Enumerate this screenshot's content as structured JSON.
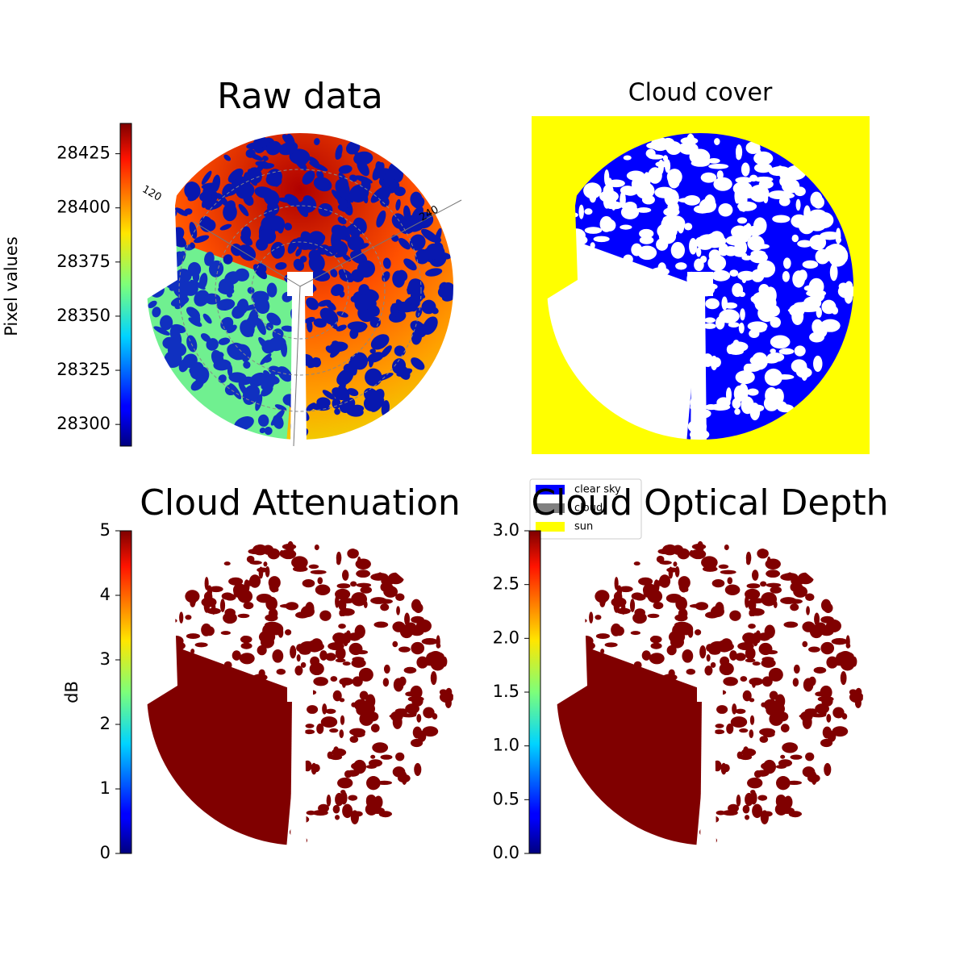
{
  "chart_data": [
    {
      "type": "image",
      "title": "Raw data",
      "colormap": "jet",
      "colorbar_label": "Pixel values",
      "colorbar_lim": [
        28290,
        28439
      ],
      "colorbar_ticks": [
        28300,
        28325,
        28350,
        28375,
        28400,
        28425
      ],
      "polar_labels": [
        "120",
        "240"
      ]
    },
    {
      "type": "categorical-image",
      "title": "Cloud cover",
      "legend": [
        {
          "name": "clear sky",
          "color": "#0000ff"
        },
        {
          "name": "cloud",
          "color": "#808080"
        },
        {
          "name": "sun",
          "color": "#ffff00"
        }
      ]
    },
    {
      "type": "image",
      "title": "Cloud Attenuation",
      "colormap": "jet",
      "colorbar_label": "dB",
      "colorbar_lim": [
        0,
        5
      ],
      "colorbar_ticks": [
        0,
        1,
        2,
        3,
        4,
        5
      ]
    },
    {
      "type": "image",
      "title": "Cloud Optical Depth",
      "colormap": "jet",
      "colorbar_lim": [
        0,
        3
      ],
      "colorbar_ticks": [
        {
          "value": 0,
          "label": "0.0"
        },
        0.5,
        {
          "value": 1,
          "label": "1.0"
        },
        1.5,
        {
          "value": 2,
          "label": "2.0"
        },
        2.5,
        {
          "value": 3,
          "label": "3.0"
        }
      ]
    }
  ]
}
